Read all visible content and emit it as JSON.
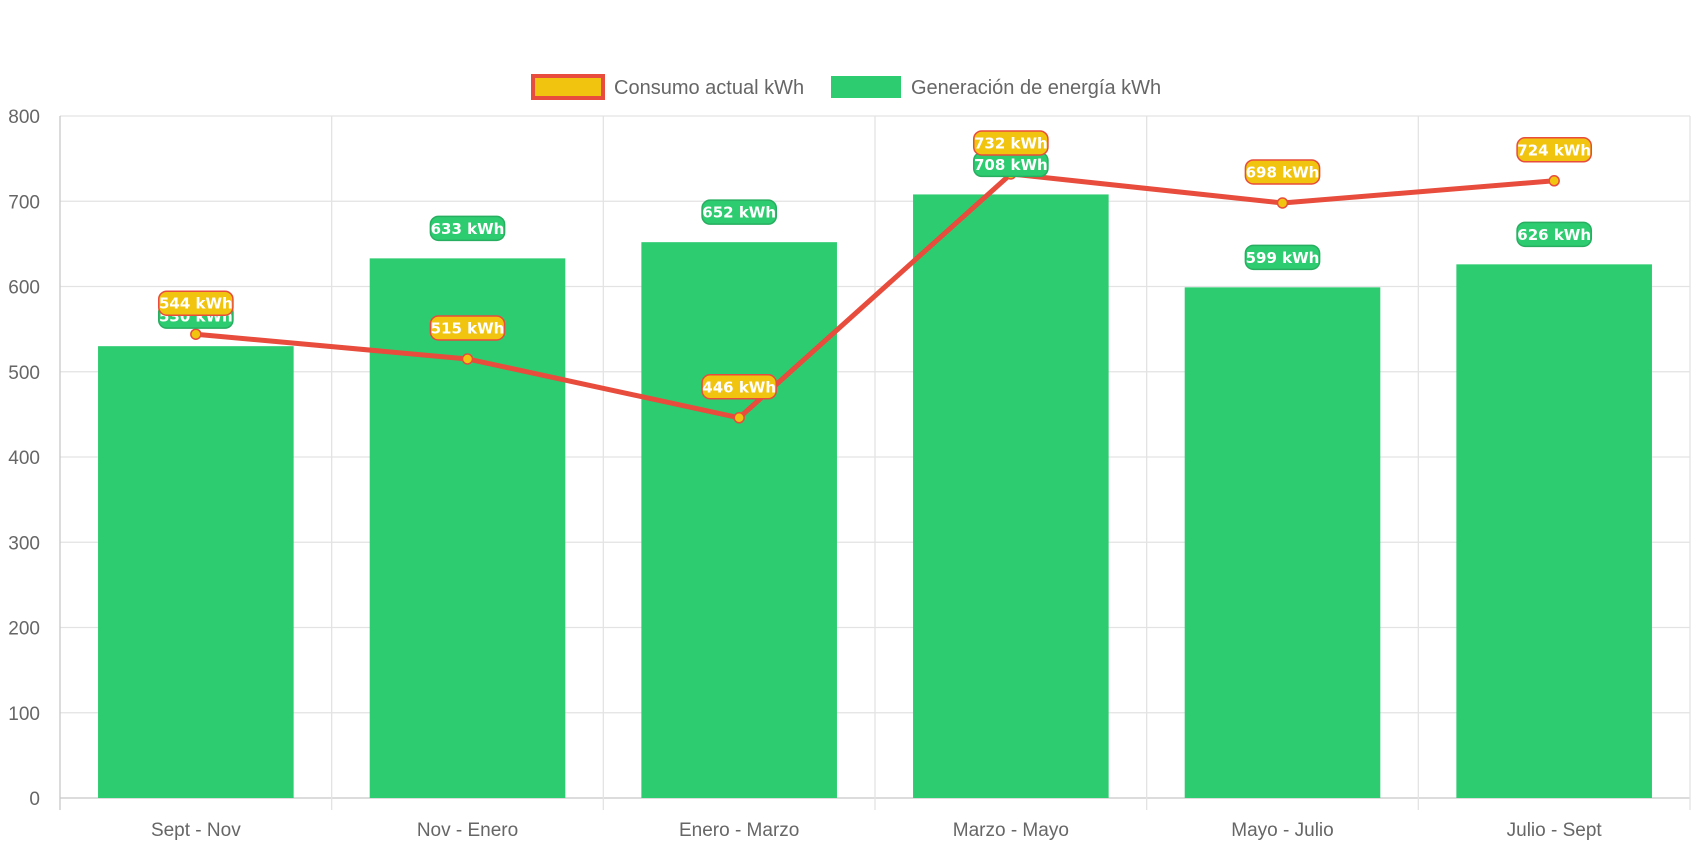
{
  "chart_data": {
    "type": "bar",
    "categories": [
      "Sept - Nov",
      "Nov - Enero",
      "Enero - Marzo",
      "Marzo - Mayo",
      "Mayo - Julio",
      "Julio - Sept"
    ],
    "series": [
      {
        "name": "Consumo actual kWh",
        "type": "line",
        "values": [
          544,
          515,
          446,
          732,
          698,
          724
        ],
        "color": "#e74c3c",
        "fill_color": "#f1c40f",
        "labels": [
          "544 kWh",
          "515 kWh",
          "446 kWh",
          "732 kWh",
          "698 kWh",
          "724 kWh"
        ]
      },
      {
        "name": "Generación de energía kWh",
        "type": "bar",
        "values": [
          530,
          633,
          652,
          708,
          599,
          626
        ],
        "color": "#2ecc71",
        "border_color": "#27ae60",
        "labels": [
          "530 kWh",
          "633 kWh",
          "652 kWh",
          "708 kWh",
          "599 kWh",
          "626 kWh"
        ]
      }
    ],
    "ylim": [
      0,
      800
    ],
    "yticks": [
      0,
      100,
      200,
      300,
      400,
      500,
      600,
      700,
      800
    ],
    "title": "",
    "xlabel": "",
    "ylabel": "",
    "grid": true,
    "legend_position": "top-center"
  }
}
